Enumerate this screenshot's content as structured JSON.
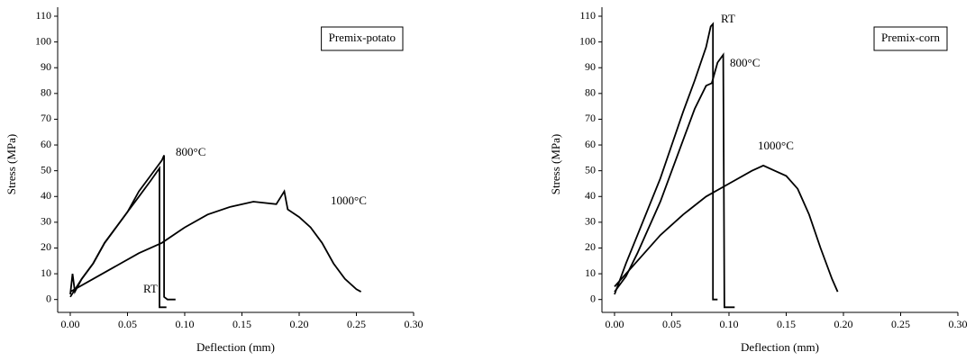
{
  "chart_data": [
    {
      "type": "line",
      "annotation": "Premix-potato",
      "xlabel": "Deflection (mm)",
      "ylabel": "Stress (MPa)",
      "xlim": [
        -0.011,
        0.3
      ],
      "ylim": [
        -5,
        110
      ],
      "xticks": [
        {
          "value": 0,
          "label": "0.00"
        },
        {
          "value": 0.05,
          "label": "0.05"
        },
        {
          "value": 0.1,
          "label": "0.10"
        },
        {
          "value": 0.15,
          "label": "0.15"
        },
        {
          "value": 0.2,
          "label": "0.20"
        },
        {
          "value": 0.25,
          "label": "0.25"
        },
        {
          "value": 0.3,
          "label": "0.30"
        }
      ],
      "yticks": [
        0,
        10,
        20,
        30,
        40,
        50,
        60,
        70,
        80,
        90,
        100,
        110
      ],
      "series": [
        {
          "name": "RT",
          "color": "#000000",
          "x": [
            0,
            0.002,
            0.004,
            0.01,
            0.02,
            0.03,
            0.04,
            0.05,
            0.06,
            0.07,
            0.078,
            0.078,
            0.08,
            0.084
          ],
          "values": [
            2,
            10,
            3,
            8,
            14,
            22,
            28,
            34,
            40,
            46,
            51,
            -3,
            -3,
            -3
          ]
        },
        {
          "name": "800°C",
          "color": "#000000",
          "x": [
            0,
            0.01,
            0.02,
            0.03,
            0.04,
            0.05,
            0.06,
            0.07,
            0.08,
            0.082,
            0.082,
            0.085,
            0.092
          ],
          "values": [
            1,
            8,
            14,
            22,
            28,
            34,
            42,
            48,
            54,
            56,
            1,
            0,
            0
          ]
        },
        {
          "name": "1000°C",
          "color": "#000000",
          "x": [
            0,
            0.02,
            0.04,
            0.06,
            0.08,
            0.1,
            0.12,
            0.14,
            0.16,
            0.18,
            0.187,
            0.19,
            0.2,
            0.21,
            0.22,
            0.23,
            0.24,
            0.25,
            0.254
          ],
          "values": [
            3,
            8,
            13,
            18,
            22,
            28,
            33,
            36,
            38,
            37,
            42,
            35,
            32,
            28,
            22,
            14,
            8,
            4,
            3
          ]
        }
      ]
    },
    {
      "type": "line",
      "annotation": "Premix-corn",
      "xlabel": "Deflection (mm)",
      "ylabel": "Stress (MPa)",
      "xlim": [
        -0.011,
        0.3
      ],
      "ylim": [
        -5,
        110
      ],
      "xticks": [
        {
          "value": 0,
          "label": "0.00"
        },
        {
          "value": 0.05,
          "label": "0.05"
        },
        {
          "value": 0.1,
          "label": "0.10"
        },
        {
          "value": 0.15,
          "label": "0.15"
        },
        {
          "value": 0.2,
          "label": "0.20"
        },
        {
          "value": 0.25,
          "label": "0.25"
        },
        {
          "value": 0.3,
          "label": "0.30"
        }
      ],
      "yticks": [
        0,
        10,
        20,
        30,
        40,
        50,
        60,
        70,
        80,
        90,
        100,
        110
      ],
      "series": [
        {
          "name": "RT",
          "color": "#000000",
          "x": [
            0,
            0.01,
            0.02,
            0.03,
            0.04,
            0.05,
            0.06,
            0.07,
            0.08,
            0.084,
            0.086,
            0.086,
            0.09
          ],
          "values": [
            2,
            14,
            25,
            36,
            47,
            60,
            73,
            85,
            98,
            106,
            107,
            0,
            0
          ]
        },
        {
          "name": "800°C",
          "color": "#000000",
          "x": [
            0,
            0.01,
            0.02,
            0.03,
            0.04,
            0.05,
            0.06,
            0.07,
            0.08,
            0.085,
            0.09,
            0.095,
            0.096,
            0.097,
            0.105
          ],
          "values": [
            3,
            9,
            18,
            28,
            38,
            50,
            62,
            74,
            83,
            84,
            92,
            95,
            -3,
            -3,
            -3
          ]
        },
        {
          "name": "1000°C",
          "color": "#000000",
          "x": [
            0,
            0.02,
            0.04,
            0.06,
            0.08,
            0.1,
            0.12,
            0.13,
            0.14,
            0.15,
            0.16,
            0.17,
            0.18,
            0.19,
            0.195
          ],
          "values": [
            5,
            15,
            25,
            33,
            40,
            45,
            50,
            52,
            50,
            48,
            43,
            33,
            20,
            8,
            3
          ]
        }
      ]
    }
  ]
}
